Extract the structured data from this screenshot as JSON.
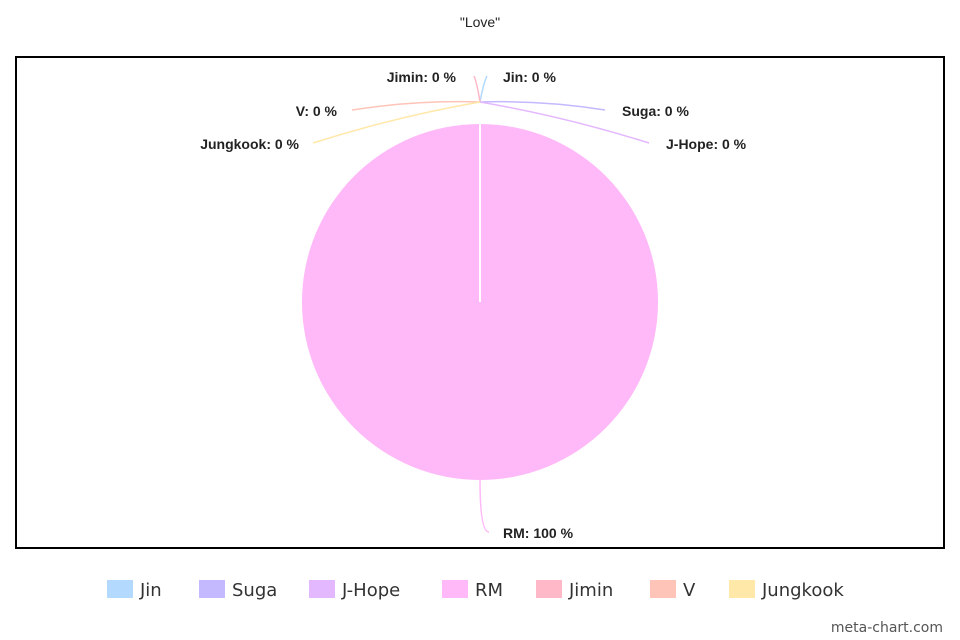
{
  "chart_data": {
    "type": "pie",
    "title": "\"Love\"",
    "series": [
      {
        "name": "Jin",
        "value": 0,
        "label": "Jin: 0 %",
        "color": "#b3d9ff"
      },
      {
        "name": "Suga",
        "value": 0,
        "label": "Suga: 0 %",
        "color": "#c4b8ff"
      },
      {
        "name": "J-Hope",
        "value": 0,
        "label": "J-Hope: 0 %",
        "color": "#e4b8ff"
      },
      {
        "name": "RM",
        "value": 100,
        "label": "RM: 100 %",
        "color": "#ffb8f8"
      },
      {
        "name": "Jimin",
        "value": 0,
        "label": "Jimin: 0 %",
        "color": "#ffb8c8"
      },
      {
        "name": "V",
        "value": 0,
        "label": "V: 0 %",
        "color": "#ffc4b8"
      },
      {
        "name": "Jungkook",
        "value": 0,
        "label": "Jungkook: 0 %",
        "color": "#ffe8a8"
      }
    ],
    "legend_position": "bottom"
  },
  "watermark": "meta-chart.com"
}
